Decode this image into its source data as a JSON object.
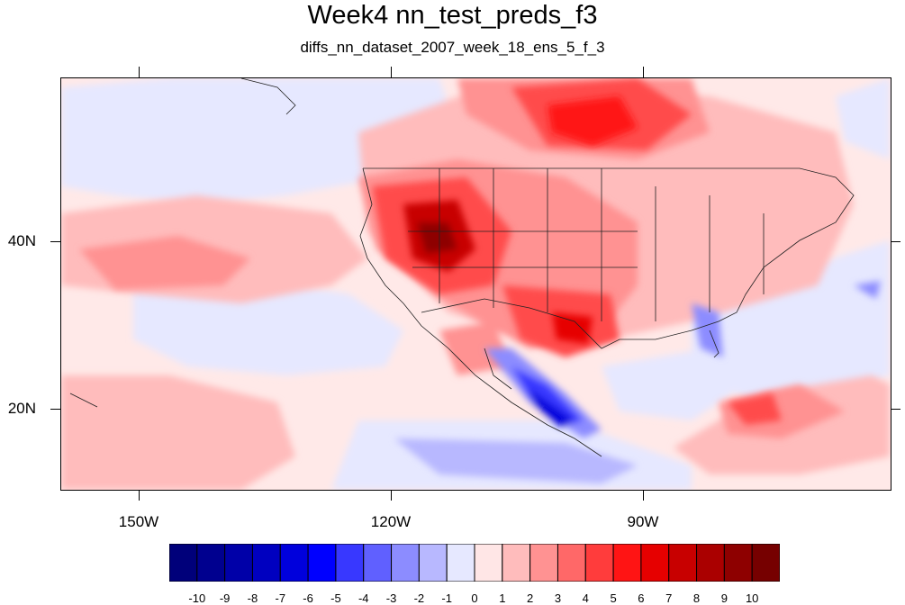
{
  "title": "Week4 nn_test_preds_f3",
  "subtitle": "diffs_nn_dataset_2007_week_18_ens_5_f_3",
  "axes": {
    "lat_labels": [
      "40N",
      "20N"
    ],
    "lon_labels": [
      "150W",
      "120W",
      "90W"
    ]
  },
  "colorbar": {
    "labels": [
      "-10",
      "-9",
      "-8",
      "-7",
      "-6",
      "-5",
      "-4",
      "-3",
      "-2",
      "-1",
      "0",
      "1",
      "2",
      "3",
      "4",
      "5",
      "6",
      "7",
      "8",
      "9",
      "10"
    ],
    "colors": [
      "#00007a",
      "#00008f",
      "#0000a8",
      "#0000c0",
      "#0000dc",
      "#0000ff",
      "#3838ff",
      "#6060ff",
      "#8c8cff",
      "#b8b8ff",
      "#e6e8ff",
      "#ffe6e6",
      "#ffbcbc",
      "#ff9292",
      "#ff6868",
      "#ff3c3c",
      "#ff1414",
      "#e60000",
      "#c80000",
      "#aa0000",
      "#8e0000",
      "#760000"
    ]
  },
  "map": {
    "background_color": "#ffe9e8",
    "lon_range": [
      -160,
      -62
    ],
    "lat_range": [
      10.5,
      59
    ]
  }
}
